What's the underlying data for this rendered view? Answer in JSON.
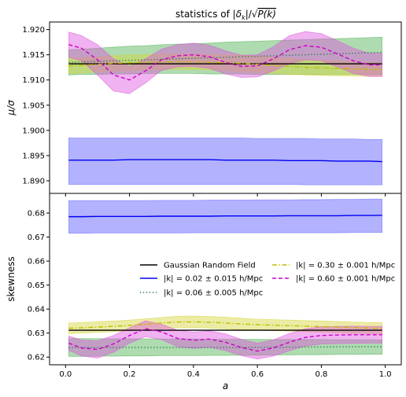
{
  "chart_data": {
    "type": "line",
    "title": "statistics of |δ_k|/√P(k)",
    "title_parts": {
      "pre": "statistics of ",
      "delta": "|δ",
      "sub": "k",
      "mid": "|/√",
      "expr": "P(k)"
    },
    "xlabel": "a",
    "xlim": [
      -0.05,
      1.05
    ],
    "xticks": [
      "0.0",
      "0.2",
      "0.4",
      "0.6",
      "0.8",
      "1.0"
    ],
    "legend_placement": "center-right of lower panel, two columns",
    "legend": [
      {
        "label": "Gaussian Random Field",
        "color": "#000000",
        "style": "solid"
      },
      {
        "label": "|k| = 0.02 ± 0.015 h/Mpc",
        "color": "#0000ee",
        "style": "solid"
      },
      {
        "label": "|k| = 0.06 ± 0.005 h/Mpc",
        "color": "#1f6f4f",
        "style": "dotted"
      },
      {
        "label": "|k| = 0.30 ± 0.001 h/Mpc",
        "color": "#bfbf00",
        "style": "dashdot"
      },
      {
        "label": "|k| = 0.60 ± 0.001 h/Mpc",
        "color": "#cc00cc",
        "style": "dashed"
      }
    ],
    "x": [
      0.01,
      0.05,
      0.1,
      0.15,
      0.2,
      0.25,
      0.3,
      0.35,
      0.4,
      0.45,
      0.5,
      0.55,
      0.6,
      0.65,
      0.7,
      0.75,
      0.8,
      0.85,
      0.9,
      0.95,
      0.99
    ],
    "panels": [
      {
        "name": "top",
        "ylabel": "μ/σ",
        "ylim": [
          1.8875,
          1.9215
        ],
        "yticks": [
          "1.890",
          "1.895",
          "1.900",
          "1.905",
          "1.910",
          "1.915",
          "1.920"
        ],
        "series": [
          {
            "key": "grf",
            "color": "#000000",
            "style": "solid",
            "values": [
              1.9132,
              1.9132,
              1.9132,
              1.9132,
              1.9132,
              1.9132,
              1.9132,
              1.9132,
              1.9132,
              1.9132,
              1.9132,
              1.9132,
              1.9132,
              1.9132,
              1.9132,
              1.9132,
              1.9132,
              1.9132,
              1.9132,
              1.9132,
              1.9132
            ]
          },
          {
            "key": "k002",
            "color": "#0000ee",
            "style": "solid",
            "band_color": "#6666ff",
            "band_opacity": 0.5,
            "values": [
              1.8941,
              1.8941,
              1.8941,
              1.8941,
              1.8942,
              1.8942,
              1.8942,
              1.8942,
              1.8942,
              1.8942,
              1.8941,
              1.8941,
              1.8941,
              1.8941,
              1.894,
              1.894,
              1.894,
              1.8939,
              1.8939,
              1.8939,
              1.8938
            ],
            "lower": [
              1.8893,
              1.8893,
              1.8893,
              1.8893,
              1.8893,
              1.8893,
              1.8893,
              1.8893,
              1.8893,
              1.8893,
              1.8893,
              1.8893,
              1.8893,
              1.8893,
              1.8893,
              1.8892,
              1.8892,
              1.8892,
              1.8892,
              1.8892,
              1.8892
            ],
            "upper": [
              1.8985,
              1.8985,
              1.8985,
              1.8985,
              1.8985,
              1.8985,
              1.8985,
              1.8985,
              1.8985,
              1.8985,
              1.8985,
              1.8985,
              1.8984,
              1.8984,
              1.8984,
              1.8984,
              1.8983,
              1.8983,
              1.8983,
              1.8982,
              1.8982
            ]
          },
          {
            "key": "k006",
            "color": "#1f6f4f",
            "style": "dotted",
            "band_color": "#4caf50",
            "band_opacity": 0.45,
            "values": [
              1.9135,
              1.9136,
              1.9137,
              1.9138,
              1.9139,
              1.914,
              1.9141,
              1.9142,
              1.9143,
              1.9144,
              1.9145,
              1.9146,
              1.9147,
              1.9148,
              1.9149,
              1.915,
              1.9151,
              1.9152,
              1.9153,
              1.9154,
              1.9155
            ],
            "lower": [
              1.911,
              1.9111,
              1.9111,
              1.9112,
              1.9112,
              1.9113,
              1.9113,
              1.9113,
              1.9113,
              1.9112,
              1.9112,
              1.9112,
              1.9111,
              1.9111,
              1.9111,
              1.9111,
              1.9111,
              1.9111,
              1.9111,
              1.9111,
              1.9111
            ],
            "upper": [
              1.916,
              1.9161,
              1.9163,
              1.9165,
              1.9167,
              1.9168,
              1.917,
              1.9171,
              1.9172,
              1.9173,
              1.9175,
              1.9176,
              1.9177,
              1.9178,
              1.9179,
              1.918,
              1.9181,
              1.9182,
              1.9183,
              1.9184,
              1.9185
            ]
          },
          {
            "key": "k030",
            "color": "#bfbf00",
            "style": "dashdot",
            "band_color": "#d4d43a",
            "band_opacity": 0.45,
            "values": [
              1.9128,
              1.9129,
              1.9131,
              1.9133,
              1.9134,
              1.9135,
              1.9136,
              1.9136,
              1.9136,
              1.9135,
              1.9134,
              1.9133,
              1.9131,
              1.9129,
              1.9127,
              1.9125,
              1.9124,
              1.9123,
              1.9122,
              1.9121,
              1.9121
            ],
            "lower": [
              1.9113,
              1.9114,
              1.9116,
              1.9118,
              1.9119,
              1.912,
              1.9121,
              1.9121,
              1.9121,
              1.912,
              1.9119,
              1.9117,
              1.9115,
              1.9113,
              1.9111,
              1.911,
              1.9109,
              1.9108,
              1.9108,
              1.9107,
              1.9107
            ],
            "upper": [
              1.9143,
              1.9144,
              1.9146,
              1.9148,
              1.9149,
              1.915,
              1.9151,
              1.9151,
              1.9151,
              1.915,
              1.9149,
              1.9149,
              1.9147,
              1.9145,
              1.9143,
              1.914,
              1.9139,
              1.9138,
              1.9136,
              1.9135,
              1.9135
            ]
          },
          {
            "key": "k060",
            "color": "#cc00cc",
            "style": "dashed",
            "band_color": "#dd55dd",
            "band_opacity": 0.45,
            "values": [
              1.917,
              1.9163,
              1.914,
              1.911,
              1.91,
              1.9118,
              1.914,
              1.9148,
              1.915,
              1.9146,
              1.9135,
              1.9127,
              1.9128,
              1.9142,
              1.916,
              1.9168,
              1.9165,
              1.9152,
              1.9138,
              1.913,
              1.913
            ],
            "lower": [
              1.9145,
              1.9138,
              1.911,
              1.9078,
              1.9073,
              1.9094,
              1.9119,
              1.9126,
              1.9127,
              1.9123,
              1.9112,
              1.9105,
              1.9106,
              1.9118,
              1.9132,
              1.914,
              1.9138,
              1.9126,
              1.9113,
              1.9107,
              1.9107
            ],
            "upper": [
              1.9195,
              1.9188,
              1.917,
              1.9142,
              1.9127,
              1.9142,
              1.9161,
              1.917,
              1.9173,
              1.9169,
              1.9158,
              1.9149,
              1.915,
              1.9166,
              1.9188,
              1.9196,
              1.9192,
              1.9178,
              1.9163,
              1.9153,
              1.9153
            ]
          }
        ]
      },
      {
        "name": "bottom",
        "ylabel": "skewness",
        "ylim": [
          0.6168,
          0.6882
        ],
        "yticks": [
          "0.62",
          "0.63",
          "0.64",
          "0.65",
          "0.66",
          "0.67",
          "0.68"
        ],
        "series": [
          {
            "key": "grf",
            "color": "#000000",
            "style": "solid",
            "values": [
              0.6312,
              0.6312,
              0.6312,
              0.6312,
              0.6312,
              0.6312,
              0.6312,
              0.6312,
              0.6312,
              0.6312,
              0.6312,
              0.6312,
              0.6312,
              0.6312,
              0.6312,
              0.6312,
              0.6312,
              0.6312,
              0.6312,
              0.6312,
              0.6312
            ]
          },
          {
            "key": "k002",
            "color": "#0000ee",
            "style": "solid",
            "band_color": "#6666ff",
            "band_opacity": 0.5,
            "values": [
              0.6785,
              0.6785,
              0.6786,
              0.6786,
              0.6786,
              0.6786,
              0.6787,
              0.6787,
              0.6787,
              0.6787,
              0.6788,
              0.6788,
              0.6788,
              0.6788,
              0.6789,
              0.6789,
              0.6789,
              0.6789,
              0.679,
              0.679,
              0.6791
            ],
            "lower": [
              0.6716,
              0.6716,
              0.6717,
              0.6717,
              0.6717,
              0.6717,
              0.6717,
              0.6717,
              0.6718,
              0.6718,
              0.6718,
              0.6718,
              0.6718,
              0.6718,
              0.6718,
              0.6718,
              0.6718,
              0.6718,
              0.6719,
              0.6719,
              0.6719
            ],
            "upper": [
              0.6852,
              0.6852,
              0.6852,
              0.6852,
              0.6852,
              0.6852,
              0.6853,
              0.6853,
              0.6853,
              0.6854,
              0.6854,
              0.6854,
              0.6855,
              0.6855,
              0.6855,
              0.6856,
              0.6856,
              0.6857,
              0.6857,
              0.6858,
              0.6858
            ]
          },
          {
            "key": "k006",
            "color": "#1f6f4f",
            "style": "dotted",
            "band_color": "#4caf50",
            "band_opacity": 0.45,
            "values": [
              0.624,
              0.624,
              0.624,
              0.624,
              0.624,
              0.624,
              0.624,
              0.624,
              0.624,
              0.624,
              0.624,
              0.624,
              0.6241,
              0.6241,
              0.6241,
              0.6242,
              0.6242,
              0.6243,
              0.6243,
              0.6243,
              0.6243
            ],
            "lower": [
              0.6203,
              0.6203,
              0.6204,
              0.6204,
              0.6205,
              0.6205,
              0.6206,
              0.6206,
              0.6206,
              0.6207,
              0.6207,
              0.6208,
              0.6208,
              0.6209,
              0.6209,
              0.621,
              0.621,
              0.6211,
              0.6211,
              0.6212,
              0.6212
            ],
            "upper": [
              0.6277,
              0.6277,
              0.6277,
              0.6276,
              0.6276,
              0.6276,
              0.6275,
              0.6275,
              0.6275,
              0.6274,
              0.6274,
              0.6274,
              0.6274,
              0.6273,
              0.6273,
              0.6273,
              0.6273,
              0.6272,
              0.6272,
              0.6272,
              0.6272
            ]
          },
          {
            "key": "k030",
            "color": "#bfbf00",
            "style": "dashdot",
            "band_color": "#d4d43a",
            "band_opacity": 0.45,
            "values": [
              0.632,
              0.6322,
              0.6325,
              0.6328,
              0.6332,
              0.6337,
              0.6342,
              0.6346,
              0.6347,
              0.6345,
              0.6342,
              0.6338,
              0.6335,
              0.6333,
              0.6331,
              0.6329,
              0.6327,
              0.6325,
              0.6323,
              0.6321,
              0.632
            ],
            "lower": [
              0.6298,
              0.63,
              0.6303,
              0.6306,
              0.631,
              0.6315,
              0.6319,
              0.6322,
              0.6323,
              0.6321,
              0.6318,
              0.6315,
              0.6312,
              0.631,
              0.6308,
              0.6306,
              0.6304,
              0.6302,
              0.63,
              0.6298,
              0.6297
            ],
            "upper": [
              0.6342,
              0.6344,
              0.6347,
              0.635,
              0.6354,
              0.6359,
              0.6365,
              0.637,
              0.6371,
              0.6369,
              0.6366,
              0.6362,
              0.6358,
              0.6356,
              0.6354,
              0.6352,
              0.635,
              0.6348,
              0.6346,
              0.6344,
              0.6343
            ]
          },
          {
            "key": "k060",
            "color": "#cc00cc",
            "style": "dashed",
            "band_color": "#dd55dd",
            "band_opacity": 0.45,
            "values": [
              0.6258,
              0.6238,
              0.6232,
              0.6255,
              0.629,
              0.6318,
              0.6305,
              0.6278,
              0.627,
              0.6275,
              0.6262,
              0.624,
              0.6225,
              0.6238,
              0.6262,
              0.6282,
              0.629,
              0.6292,
              0.6293,
              0.6293,
              0.6293
            ],
            "lower": [
              0.6228,
              0.6205,
              0.6196,
              0.622,
              0.6258,
              0.6285,
              0.6273,
              0.6244,
              0.6236,
              0.6241,
              0.6227,
              0.6206,
              0.6192,
              0.6204,
              0.6226,
              0.6246,
              0.6254,
              0.6256,
              0.6257,
              0.6258,
              0.6258
            ],
            "upper": [
              0.6288,
              0.6271,
              0.6268,
              0.629,
              0.6322,
              0.6351,
              0.6337,
              0.6312,
              0.6304,
              0.6309,
              0.6297,
              0.6274,
              0.6258,
              0.6272,
              0.6298,
              0.6318,
              0.6326,
              0.6328,
              0.6329,
              0.6328,
              0.6328
            ]
          }
        ]
      }
    ]
  }
}
